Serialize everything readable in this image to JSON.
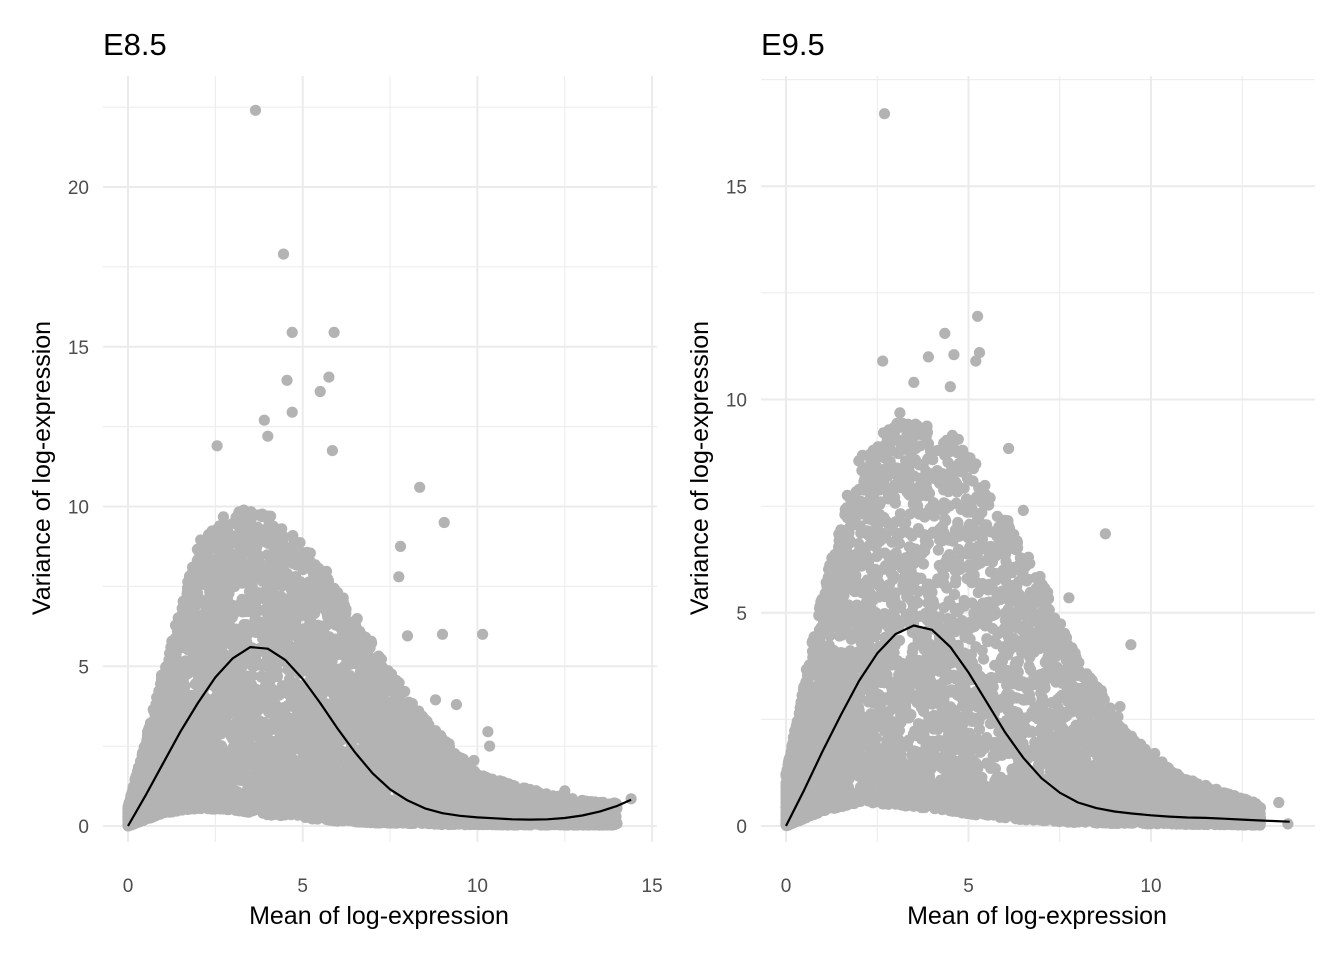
{
  "colors": {
    "background": "#ffffff",
    "grid": "#ebebeb",
    "points": "#b3b3b3",
    "trend_line": "#000000",
    "tick_text": "#4d4d4d",
    "label_text": "#000000"
  },
  "chart_data": [
    {
      "type": "scatter",
      "title": "E8.5",
      "xlabel": "Mean of log-expression",
      "ylabel": "Variance of log-expression",
      "xlim": [
        0,
        15
      ],
      "ylim": [
        0,
        22.4
      ],
      "x_ticks": [
        0,
        5,
        10,
        15
      ],
      "x_tick_labels": [
        "0",
        "5",
        "10",
        "15"
      ],
      "y_ticks": [
        0,
        5,
        10,
        15,
        20
      ],
      "y_tick_labels": [
        "0",
        "5",
        "10",
        "15",
        "20"
      ],
      "grid": true,
      "legend": "none",
      "trend": {
        "x": [
          0,
          0.5,
          1,
          1.5,
          2,
          2.5,
          3,
          3.5,
          4,
          4.5,
          5,
          5.5,
          6,
          6.5,
          7,
          7.5,
          8,
          8.5,
          9,
          9.5,
          10,
          10.5,
          11,
          11.5,
          12,
          12.5,
          13,
          13.5,
          14,
          14.4
        ],
        "y": [
          0,
          0.95,
          1.95,
          2.95,
          3.85,
          4.65,
          5.25,
          5.6,
          5.55,
          5.2,
          4.6,
          3.85,
          3.05,
          2.3,
          1.65,
          1.15,
          0.8,
          0.55,
          0.4,
          0.32,
          0.27,
          0.24,
          0.21,
          0.2,
          0.21,
          0.25,
          0.33,
          0.45,
          0.63,
          0.82
        ]
      },
      "outliers": {
        "x": [
          3.65,
          4.45,
          4.7,
          5.9,
          5.75,
          4.55,
          5.5,
          3.9,
          4.0,
          4.7,
          2.55,
          5.85,
          8.35,
          9.05,
          10.15,
          9.0,
          7.8,
          8.0,
          7.75,
          10.3,
          10.35,
          9.4,
          8.8,
          9.9,
          14.4,
          12.5,
          13.0
        ],
        "y": [
          22.4,
          17.9,
          15.45,
          15.45,
          14.05,
          13.95,
          13.6,
          12.7,
          12.2,
          12.95,
          11.9,
          11.75,
          10.6,
          9.5,
          6.0,
          6.0,
          8.75,
          5.95,
          7.8,
          2.95,
          2.5,
          3.8,
          3.95,
          2.05,
          0.85,
          1.1,
          0.8
        ]
      },
      "cloud": {
        "mean_shape_x": [
          0,
          1,
          2,
          3,
          4,
          5,
          6,
          7,
          8,
          9,
          10,
          11,
          12,
          13,
          14
        ],
        "upper_envelope": [
          0.6,
          4.8,
          8.8,
          10.0,
          9.7,
          8.9,
          7.3,
          5.7,
          4.0,
          2.8,
          1.6,
          1.3,
          1.0,
          0.8,
          0.7
        ],
        "lower_envelope": [
          0,
          0.4,
          0.55,
          0.5,
          0.35,
          0.25,
          0.15,
          0.1,
          0.08,
          0.05,
          0.04,
          0.03,
          0.03,
          0.03,
          0.03
        ]
      }
    },
    {
      "type": "scatter",
      "title": "E9.5",
      "xlabel": "Mean of log-expression",
      "ylabel": "Variance of log-expression",
      "xlim": [
        0,
        13.8
      ],
      "ylim": [
        0,
        16.8
      ],
      "x_ticks": [
        0,
        5,
        10
      ],
      "x_tick_labels": [
        "0",
        "5",
        "10"
      ],
      "y_ticks": [
        0,
        5,
        10,
        15
      ],
      "y_tick_labels": [
        "0",
        "5",
        "10",
        "15"
      ],
      "grid": true,
      "legend": "none",
      "trend": {
        "x": [
          0,
          0.5,
          1,
          1.5,
          2,
          2.5,
          3,
          3.5,
          4,
          4.5,
          5,
          5.5,
          6,
          6.5,
          7,
          7.5,
          8,
          8.5,
          9,
          9.5,
          10,
          10.5,
          11,
          11.5,
          12,
          12.5,
          13,
          13.8
        ],
        "y": [
          0,
          0.85,
          1.75,
          2.6,
          3.4,
          4.05,
          4.5,
          4.7,
          4.6,
          4.2,
          3.6,
          2.9,
          2.2,
          1.6,
          1.12,
          0.78,
          0.55,
          0.42,
          0.34,
          0.29,
          0.25,
          0.22,
          0.2,
          0.19,
          0.17,
          0.15,
          0.13,
          0.1
        ]
      },
      "outliers": {
        "x": [
          2.7,
          5.25,
          4.35,
          3.9,
          4.6,
          2.65,
          5.3,
          5.2,
          4.5,
          3.5,
          6.1,
          8.75,
          7.75,
          9.45,
          9.15,
          10.1,
          6.5,
          13.75,
          13.5,
          11.5,
          10.3
        ],
        "y": [
          16.7,
          11.95,
          11.55,
          11.0,
          11.05,
          10.9,
          11.1,
          10.9,
          10.3,
          10.4,
          8.85,
          6.85,
          5.35,
          4.25,
          2.8,
          1.7,
          7.4,
          0.05,
          0.55,
          0.95,
          1.5
        ]
      },
      "cloud": {
        "mean_shape_x": [
          0,
          1,
          2,
          3,
          4,
          5,
          6,
          7,
          8,
          9,
          10,
          11,
          12,
          13
        ],
        "upper_envelope": [
          1.2,
          5.5,
          8.6,
          9.6,
          9.4,
          8.7,
          7.2,
          5.8,
          3.9,
          2.7,
          1.6,
          1.1,
          0.8,
          0.5
        ],
        "lower_envelope": [
          0,
          0.35,
          0.55,
          0.5,
          0.4,
          0.28,
          0.18,
          0.12,
          0.08,
          0.06,
          0.05,
          0.04,
          0.03,
          0.02
        ]
      }
    }
  ]
}
